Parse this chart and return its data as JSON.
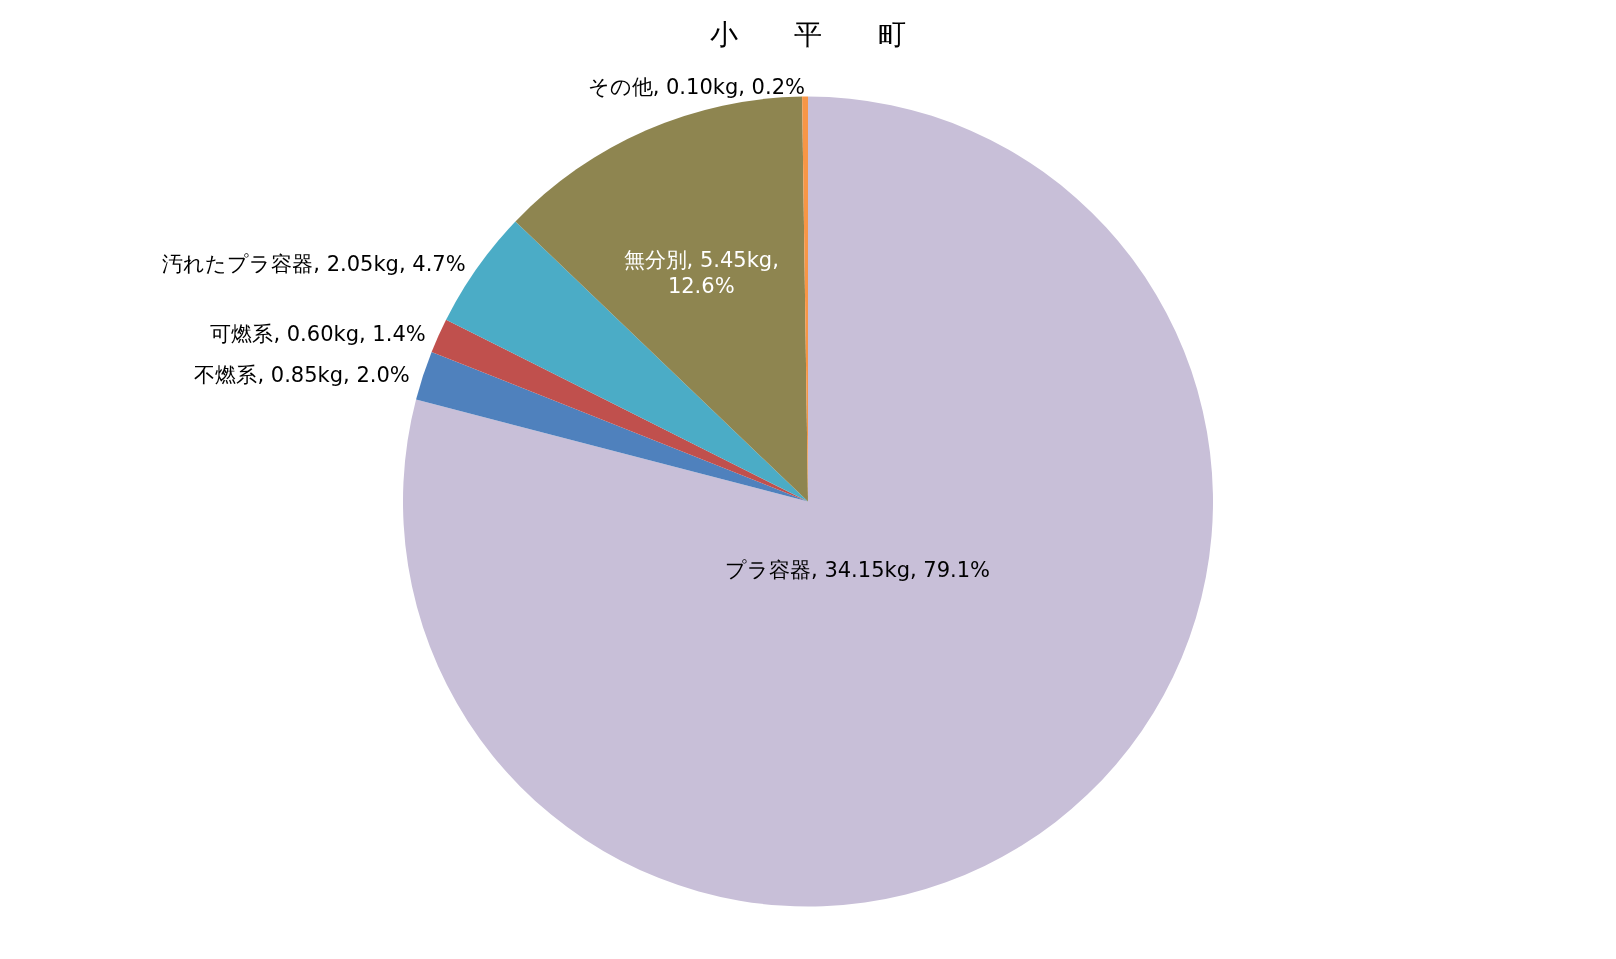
{
  "chart_data": {
    "type": "pie",
    "title": "小　　平　　町",
    "categories": [
      "プラ容器",
      "不燃系",
      "可燃系",
      "汚れたプラ容器",
      "無分別",
      "その他"
    ],
    "values": [
      34.15,
      0.85,
      0.6,
      2.05,
      5.45,
      0.1
    ],
    "colors": [
      "#c8bfd8",
      "#4f81bd",
      "#c0504d",
      "#4bacc6",
      "#8e8550",
      "#f79646"
    ],
    "value_labels": [
      "34.15kg, 79.1%",
      "0.85kg, 2.0%",
      "0.60kg, 1.4%",
      "2.05kg, 4.7%",
      "5.45kg, 12.6%",
      "0.10kg, 0.2%"
    ]
  }
}
